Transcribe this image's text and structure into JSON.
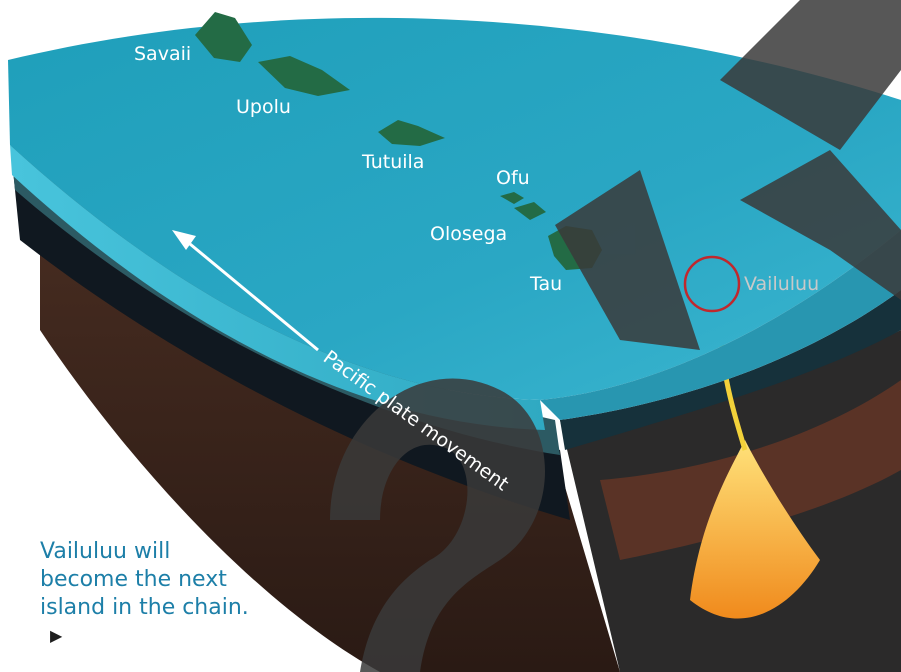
{
  "islands": {
    "savaii": "Savaii",
    "upolu": "Upolu",
    "tutuila": "Tutuila",
    "ofu": "Ofu",
    "olosega": "Olosega",
    "tau": "Tau"
  },
  "seamount": {
    "label": "Vailuluu",
    "circle_color": "#c0282d"
  },
  "plate_movement": {
    "label": "Pacific plate movement",
    "arrow_color": "#ffffff"
  },
  "caption": {
    "line1": "Vailuluu will",
    "line2": "become the next",
    "line3": "island in the chain.",
    "pointer": "play-triangle-icon",
    "color": "#1d7fa8"
  },
  "colors": {
    "ocean_surface": "#2aa7c4",
    "ocean_edge": "#48c4dc",
    "crust_layers": [
      "#1b2f3f",
      "#101820",
      "#2c5a63",
      "#233134",
      "#3d2a22"
    ],
    "magma": "#f5a623",
    "watermark": "#3a3a3a"
  }
}
